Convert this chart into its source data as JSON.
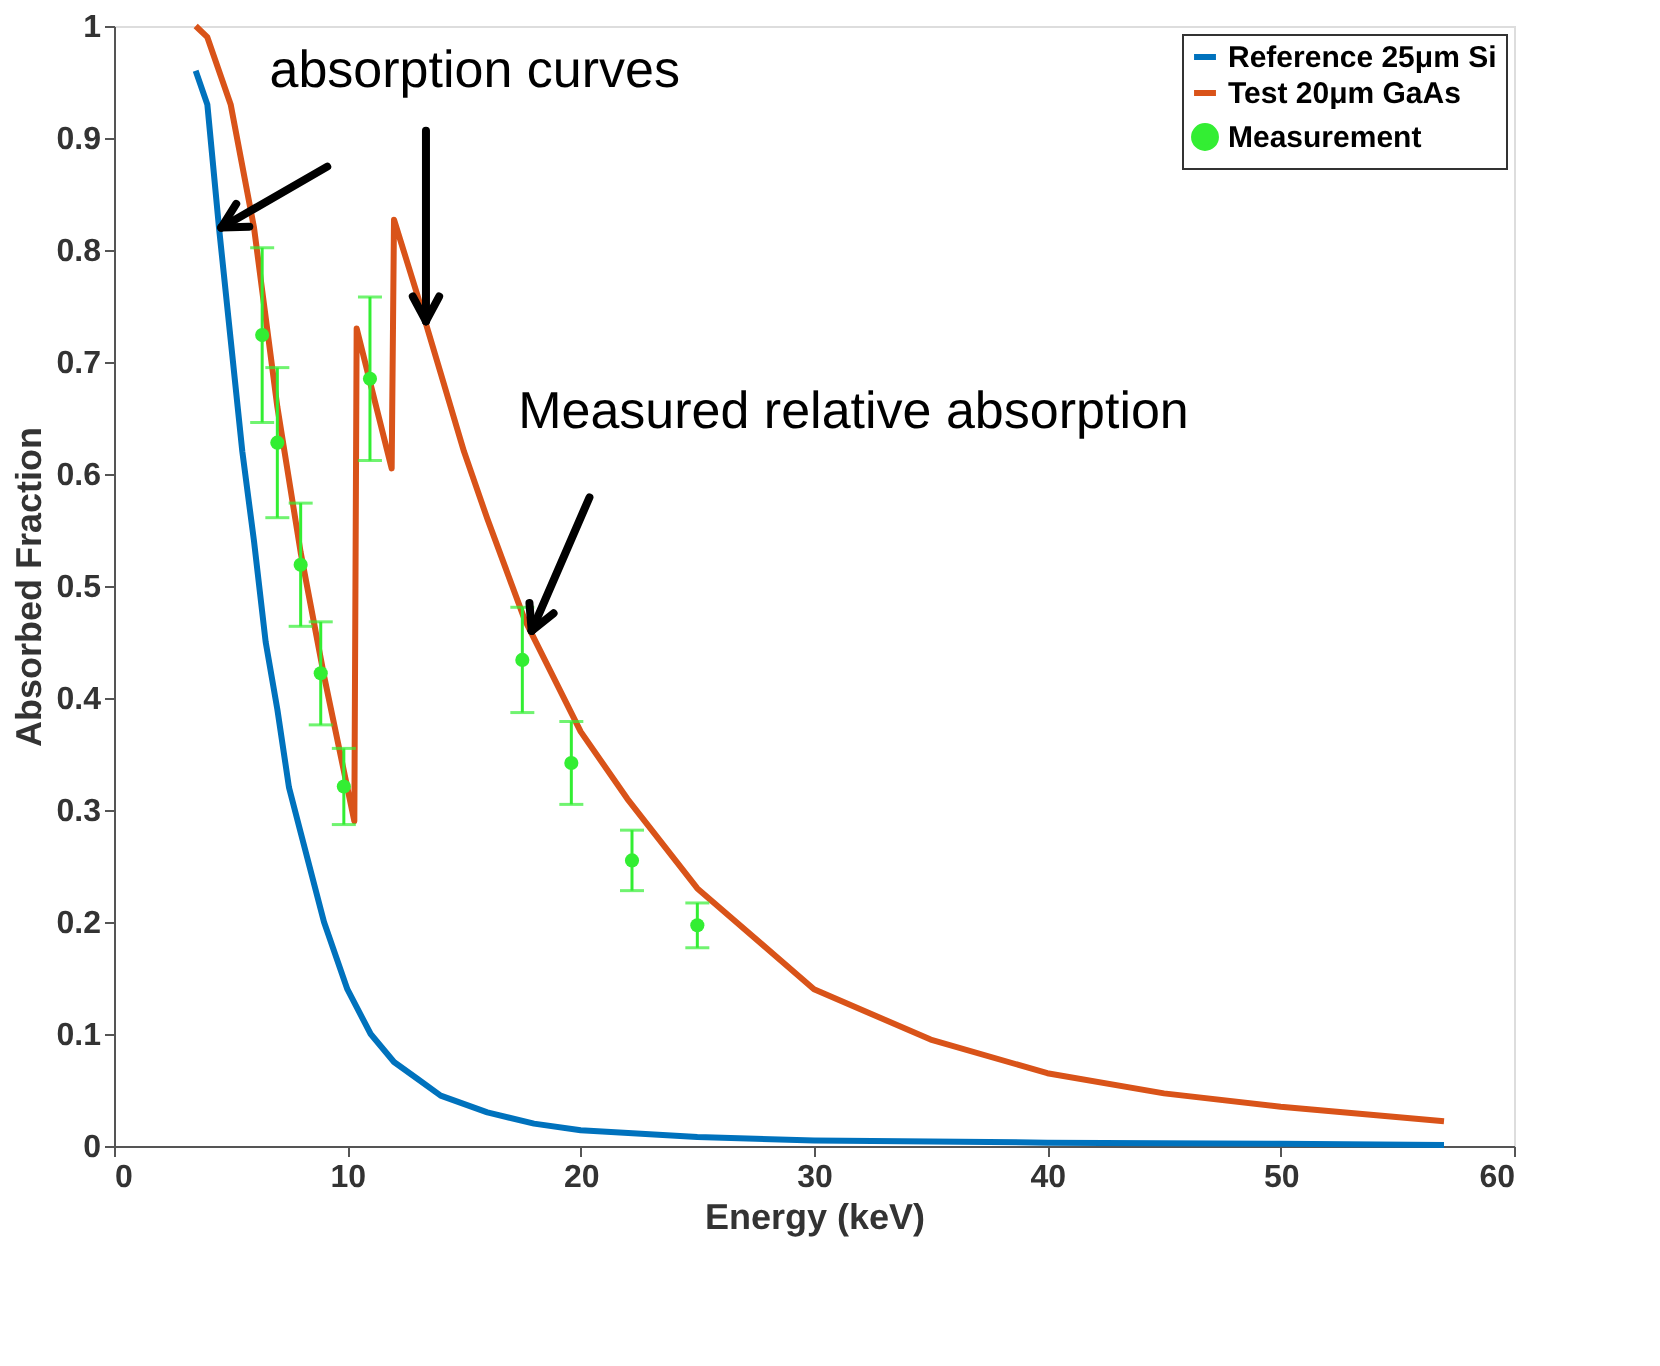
{
  "chart_data": {
    "type": "line",
    "xlabel": "Energy (keV)",
    "ylabel": "Absorbed Fraction",
    "xlim": [
      0,
      60
    ],
    "xticks": [
      0,
      10,
      20,
      30,
      40,
      50,
      60
    ],
    "ylim": [
      0,
      1
    ],
    "yticks": [
      0,
      0.1,
      0.2,
      0.3,
      0.4,
      0.5,
      0.6,
      0.7,
      0.8,
      0.9,
      1
    ],
    "legend": "top right",
    "series": [
      {
        "name": "Reference 25μm Si",
        "color": "#0072bd",
        "x": [
          3.5,
          4.0,
          4.5,
          5,
          5.5,
          6,
          6.5,
          7,
          7.5,
          8,
          9,
          10,
          11,
          12,
          13,
          14,
          16,
          18,
          20,
          25,
          30,
          40,
          50,
          57
        ],
        "values": [
          0.96,
          0.93,
          0.82,
          0.72,
          0.62,
          0.54,
          0.45,
          0.39,
          0.32,
          0.28,
          0.2,
          0.14,
          0.1,
          0.075,
          0.06,
          0.045,
          0.03,
          0.02,
          0.014,
          0.008,
          0.005,
          0.003,
          0.002,
          0.001
        ]
      },
      {
        "name": "Test 20μm GaAs",
        "color": "#d95319",
        "x": [
          3.5,
          4.0,
          5,
          6,
          7,
          8,
          9,
          10,
          10.3,
          10.4,
          11.9,
          12.0,
          13,
          14,
          15,
          16,
          17.6,
          20,
          22,
          25,
          30,
          35,
          40,
          45,
          50,
          57
        ],
        "values": [
          1.0,
          0.99,
          0.93,
          0.82,
          0.66,
          0.53,
          0.42,
          0.32,
          0.29,
          0.73,
          0.605,
          0.827,
          0.76,
          0.69,
          0.62,
          0.56,
          0.47,
          0.37,
          0.31,
          0.23,
          0.14,
          0.095,
          0.065,
          0.047,
          0.035,
          0.022
        ]
      },
      {
        "name": "Measurement",
        "type": "scatter",
        "marker": "circle",
        "color": "#33ee33",
        "x": [
          6.35,
          7.0,
          8.0,
          8.86,
          9.85,
          10.97,
          17.5,
          19.6,
          22.2,
          25.0
        ],
        "values": [
          0.724,
          0.628,
          0.519,
          0.422,
          0.321,
          0.685,
          0.434,
          0.342,
          0.255,
          0.197
        ],
        "errors": [
          0.078,
          0.067,
          0.055,
          0.046,
          0.034,
          0.073,
          0.047,
          0.037,
          0.027,
          0.02
        ]
      }
    ],
    "annotations": [
      {
        "text": "absorption curves",
        "x": 4.6,
        "y": 0.82
      },
      {
        "text": "Measured relative absorption",
        "x": 17.9,
        "y": 0.46
      }
    ]
  }
}
